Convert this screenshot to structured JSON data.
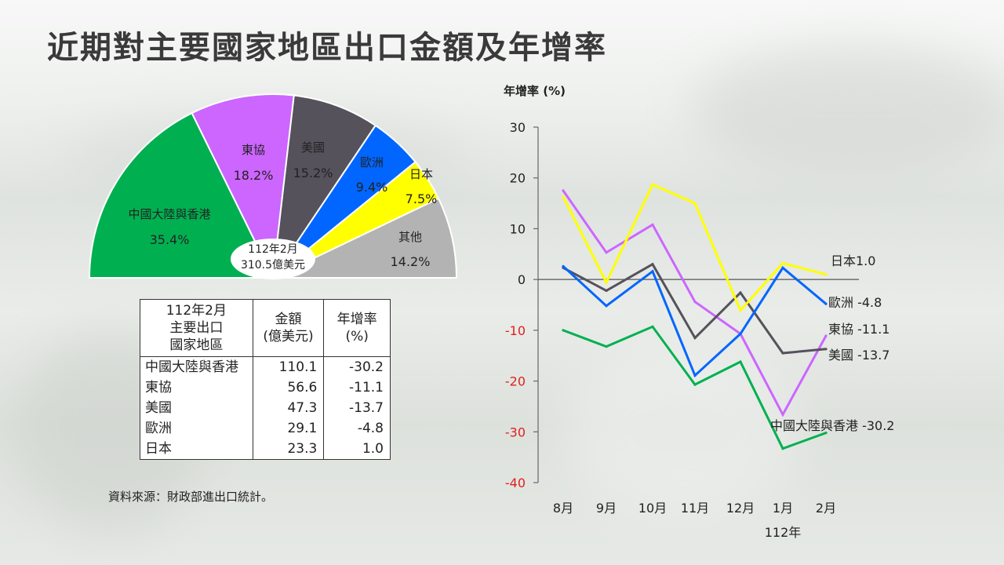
{
  "title": "近期對主要國家地區出口金額及年增率",
  "source": "資料來源：財政部進出口統計。",
  "pie": {
    "center_line1": "112年2月",
    "center_line2": "310.5億美元",
    "slices": [
      {
        "label": "中國大陸與香港",
        "pct": "35.4%",
        "value": 35.4,
        "color": "#00b050"
      },
      {
        "label": "東協",
        "pct": "18.2%",
        "value": 18.2,
        "color": "#cc66ff"
      },
      {
        "label": "美國",
        "pct": "15.2%",
        "value": 15.2,
        "color": "#55525c"
      },
      {
        "label": "歐洲",
        "pct": "9.4%",
        "value": 9.4,
        "color": "#0066ff"
      },
      {
        "label": "日本",
        "pct": "7.5%",
        "value": 7.5,
        "color": "#ffff00"
      },
      {
        "label": "其他",
        "pct": "14.2%",
        "value": 14.2,
        "color": "#b3b3b3"
      }
    ]
  },
  "table": {
    "headers": [
      "112年2月\n主要出口\n國家地區",
      "金額\n(億美元)",
      "年增率\n(%)"
    ],
    "rows": [
      [
        "中國大陸與香港",
        "110.1",
        "-30.2"
      ],
      [
        "東協",
        "56.6",
        "-11.1"
      ],
      [
        "美國",
        "47.3",
        "-13.7"
      ],
      [
        "歐洲",
        "29.1",
        "-4.8"
      ],
      [
        "日本",
        "23.3",
        "1.0"
      ]
    ]
  },
  "chart_data": {
    "type": "line",
    "ylabel": "年增率 (%)",
    "x": [
      "8月",
      "9月",
      "10月",
      "11月",
      "12月",
      "1月",
      "2月"
    ],
    "x_group_label": "112年",
    "ylim": [
      -40,
      30
    ],
    "yticks": [
      "30",
      "20",
      "10",
      "0",
      "-10",
      "-20",
      "-30",
      "-40"
    ],
    "series": [
      {
        "name": "中國大陸與香港",
        "end_label": "中國大陸與香港  -30.2",
        "color": "#00b050",
        "values": [
          -10.0,
          -13.2,
          -9.3,
          -20.7,
          -16.2,
          -33.3,
          -30.2
        ]
      },
      {
        "name": "東協",
        "end_label": "東協  -11.1",
        "color": "#cc66ff",
        "values": [
          17.5,
          5.3,
          10.8,
          -4.4,
          -10.7,
          -26.6,
          -11.1
        ]
      },
      {
        "name": "美國",
        "end_label": "美國  -13.7",
        "color": "#55525c",
        "values": [
          2.3,
          -2.2,
          3.0,
          -11.5,
          -2.6,
          -14.5,
          -13.7
        ]
      },
      {
        "name": "歐洲",
        "end_label": "歐洲  -4.8",
        "color": "#0066ff",
        "values": [
          2.6,
          -5.2,
          1.6,
          -18.9,
          -10.7,
          2.3,
          -4.8
        ]
      },
      {
        "name": "日本",
        "end_label": "日本1.0",
        "color": "#ffff00",
        "values": [
          16.3,
          -0.6,
          18.7,
          15.0,
          -6.1,
          3.2,
          1.0
        ]
      }
    ]
  }
}
